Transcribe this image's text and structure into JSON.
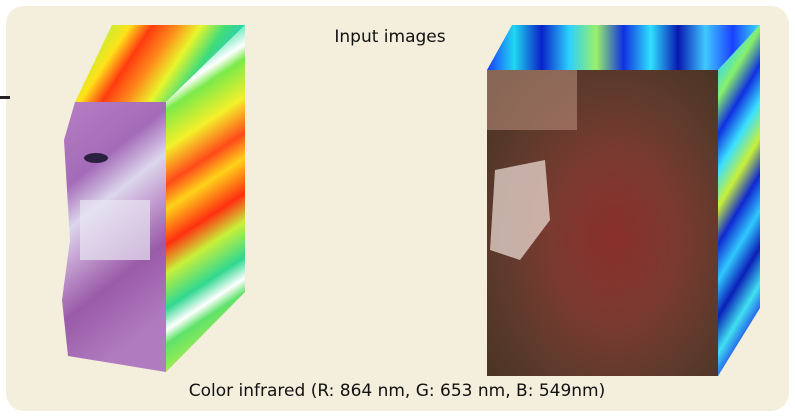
{
  "title": "Input images",
  "caption": "Color infrared (R: 864 nm, G: 653 nm, B: 549nm)"
}
